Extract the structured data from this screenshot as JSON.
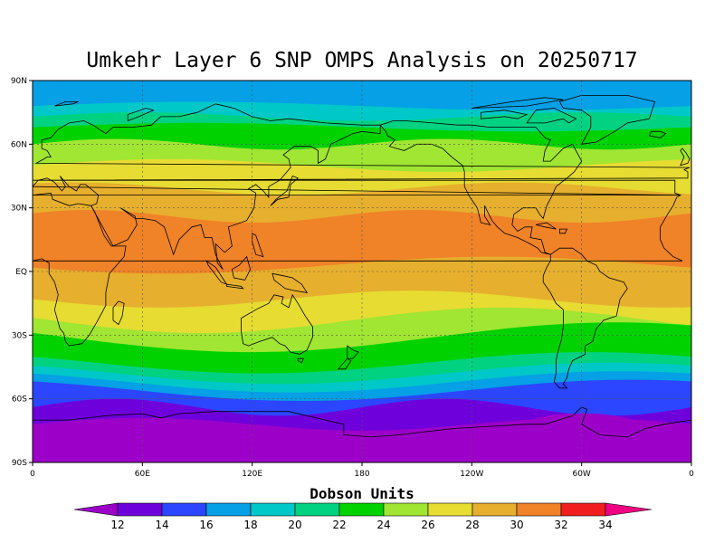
{
  "title": "Umkehr Layer 6 SNP OMPS Analysis on 20250717",
  "colorbar": {
    "title": "Dobson Units",
    "levels": [
      12,
      14,
      16,
      18,
      20,
      22,
      24,
      26,
      28,
      30,
      32,
      34
    ],
    "colors": [
      "#9c00c8",
      "#6e00dc",
      "#2c45ff",
      "#05a0e6",
      "#00c8c8",
      "#00d282",
      "#00d200",
      "#a0e632",
      "#e6dc32",
      "#e6af2d",
      "#f08228",
      "#f01e1e",
      "#f00082"
    ]
  },
  "map": {
    "x_ticks": [
      "0",
      "60E",
      "120E",
      "180",
      "120W",
      "60W",
      "0"
    ],
    "y_ticks": [
      "90N",
      "60N",
      "30N",
      "EQ",
      "30S",
      "60S",
      "90S"
    ],
    "lon_range": [
      0,
      360
    ],
    "lat_range": [
      -90,
      90
    ]
  },
  "chart_data": {
    "type": "heatmap",
    "title": "Umkehr Layer 6 SNP OMPS Analysis on 20250717",
    "units": "Dobson Units",
    "x_range": [
      0,
      360
    ],
    "y_range": [
      -90,
      90
    ],
    "lat_bands": [
      {
        "lat": [
          78,
          90
        ],
        "du": "16-18"
      },
      {
        "lat": [
          69,
          78
        ],
        "du": "18-20"
      },
      {
        "lat": [
          62,
          69
        ],
        "du": "22-24"
      },
      {
        "lat": [
          51,
          62
        ],
        "du": "24-26"
      },
      {
        "lat": [
          40,
          51
        ],
        "du": "26-28"
      },
      {
        "lat": [
          26,
          40
        ],
        "du": "28-30"
      },
      {
        "lat": [
          5,
          26
        ],
        "du": "30-32"
      },
      {
        "lat": [
          -12,
          5
        ],
        "du": "28-30"
      },
      {
        "lat": [
          -25,
          -12
        ],
        "du": "26-28"
      },
      {
        "lat": [
          -33,
          -25
        ],
        "du": "24-26"
      },
      {
        "lat": [
          -47,
          -33
        ],
        "du": "22-24"
      },
      {
        "lat": [
          -52,
          -47
        ],
        "du": "20-22"
      },
      {
        "lat": [
          -60,
          -52
        ],
        "du": "16-20"
      },
      {
        "lat": [
          -75,
          -60
        ],
        "du": "14-16"
      },
      {
        "lat": [
          -90,
          -75
        ],
        "du": "12-14"
      }
    ]
  }
}
